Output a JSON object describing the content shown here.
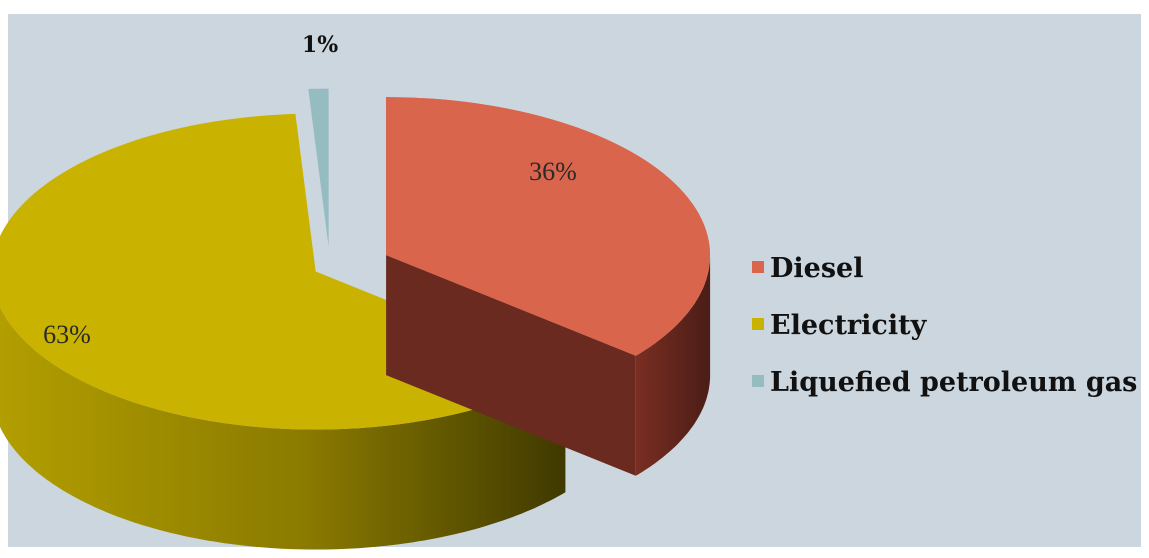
{
  "chart_data": {
    "type": "pie",
    "categories": [
      "Diesel",
      "Electricity",
      "Liquefied petroleum gas (LPG)"
    ],
    "values": [
      36,
      63,
      1
    ],
    "data_labels": [
      "36%",
      "63%",
      "1%"
    ],
    "colors": {
      "Diesel": "#d9654d",
      "Electricity": "#c9b200",
      "Liquefied petroleum gas (LPG)": "#95bcc0"
    },
    "style": "3d-exploded",
    "legend": {
      "position": "right",
      "entries": [
        "Diesel",
        "Electricity",
        "Liquefied petroleum gas (LPG)"
      ]
    },
    "background": "#ccd6de"
  }
}
